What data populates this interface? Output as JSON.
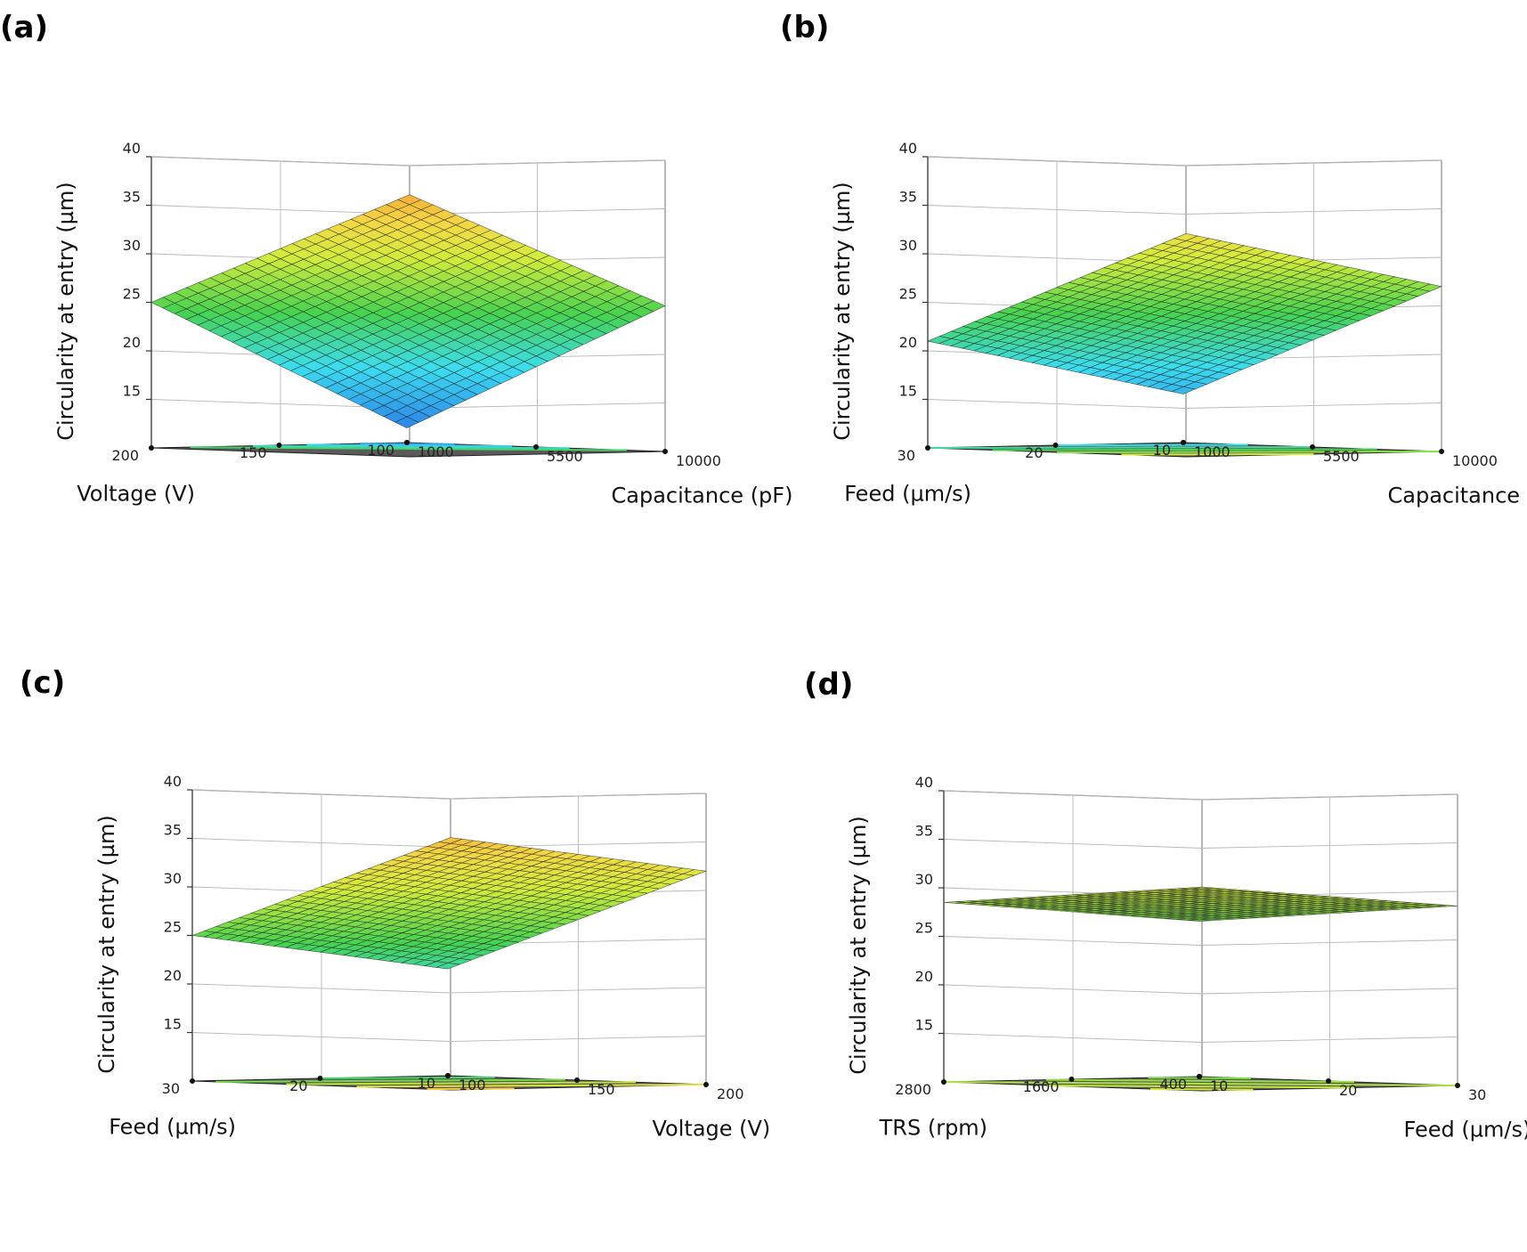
{
  "figure": {
    "colors": {
      "floor": "#5a5a5a",
      "box": "#8a8a8a",
      "mesh": "#1e2a22",
      "background": "#ffffff"
    }
  },
  "chart_data": [
    {
      "panel": "(a)",
      "type": "surface3d",
      "zlabel": "Circularity at entry (µm)",
      "zlim": [
        10,
        40
      ],
      "zticks": [
        "15",
        "20",
        "25",
        "30",
        "35",
        "40"
      ],
      "xlabel": "Voltage (V)",
      "xticks": [
        "100",
        "150",
        "200"
      ],
      "ylabel": "Capacitance (pF)",
      "yticks": [
        "1000",
        "5500",
        "10000"
      ],
      "corners": {
        "x_min_y_min": 11.5,
        "x_max_y_min": 25.0,
        "x_min_y_max": 25.0,
        "x_max_y_max": 37.0
      },
      "contour_levels": [
        14,
        17,
        20,
        23
      ]
    },
    {
      "panel": "(b)",
      "type": "surface3d",
      "zlabel": "Circularity at entry (µm)",
      "zlim": [
        10,
        40
      ],
      "zticks": [
        "15",
        "20",
        "25",
        "30",
        "35",
        "40"
      ],
      "xlabel": "Feed (µm/s)",
      "xticks": [
        "10",
        "20",
        "30"
      ],
      "ylabel": "Capacitance (pF)",
      "yticks": [
        "1000",
        "5500",
        "10000"
      ],
      "corners": {
        "x_min_y_min": 15.0,
        "x_max_y_min": 21.0,
        "x_min_y_max": 27.0,
        "x_max_y_max": 33.0
      },
      "contour_levels": [
        18,
        21,
        24,
        27,
        30
      ]
    },
    {
      "panel": "(c)",
      "type": "surface3d",
      "zlabel": "Circularity at entry (µm)",
      "zlim": [
        10,
        40
      ],
      "zticks": [
        "15",
        "20",
        "25",
        "30",
        "35",
        "40"
      ],
      "xlabel": "Feed (µm/s)",
      "xticks": [
        "10",
        "20",
        "30"
      ],
      "ylabel": "Voltage (V)",
      "yticks": [
        "100",
        "150",
        "200"
      ],
      "corners": {
        "x_min_y_min": 21.0,
        "x_max_y_min": 25.0,
        "x_min_y_max": 32.0,
        "x_max_y_max": 36.0
      },
      "contour_levels": [
        23,
        26,
        29,
        32,
        35
      ]
    },
    {
      "panel": "(d)",
      "type": "surface3d",
      "zlabel": "Circularity at entry (µm)",
      "zlim": [
        10,
        40
      ],
      "zticks": [
        "15",
        "20",
        "25",
        "30",
        "35",
        "40"
      ],
      "xlabel": "TRS (rpm)",
      "xticks": [
        "400",
        "1600",
        "2800"
      ],
      "ylabel": "Feed (µm/s)",
      "yticks": [
        "10",
        "20",
        "30"
      ],
      "corners": {
        "x_min_y_min": 26.0,
        "x_max_y_min": 28.5,
        "x_min_y_max": 28.5,
        "x_max_y_max": 31.0
      },
      "contour_levels": [
        26.5,
        27.5,
        28.5,
        29.5,
        30.5
      ]
    }
  ]
}
